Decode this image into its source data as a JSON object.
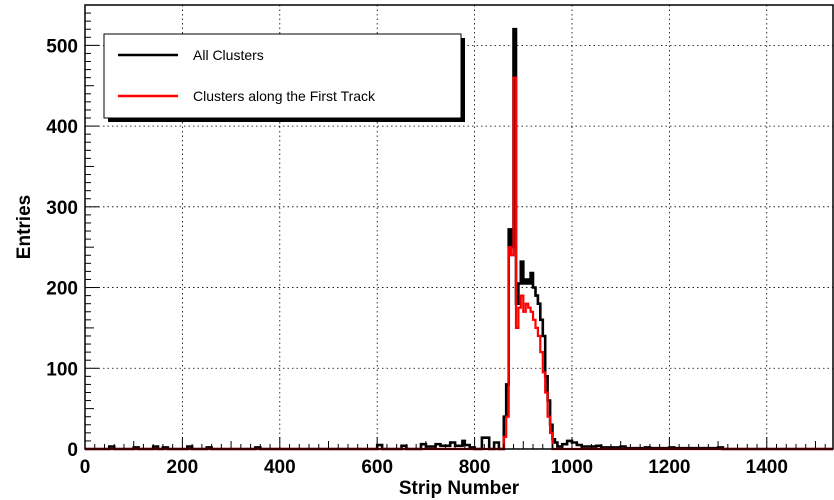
{
  "chart_data": {
    "type": "line",
    "title": "",
    "xlabel": "Strip Number",
    "ylabel": "Entries",
    "xlim": [
      0,
      1536
    ],
    "ylim": [
      0,
      550
    ],
    "grid": true,
    "legend_position": "top-left",
    "x_ticks": [
      "0",
      "200",
      "400",
      "600",
      "800",
      "1000",
      "1200",
      "1400"
    ],
    "y_ticks": [
      "0",
      "100",
      "200",
      "300",
      "400",
      "500"
    ],
    "series": [
      {
        "name": "All Clusters",
        "color": "#000000",
        "x": [
          0,
          50,
          60,
          100,
          110,
          140,
          150,
          160,
          170,
          210,
          220,
          250,
          260,
          350,
          360,
          600,
          610,
          650,
          660,
          690,
          700,
          720,
          730,
          750,
          760,
          775,
          780,
          790,
          800,
          815,
          820,
          830,
          840,
          850,
          860,
          865,
          870,
          875,
          880,
          885,
          890,
          895,
          900,
          905,
          910,
          915,
          920,
          925,
          930,
          935,
          940,
          945,
          950,
          955,
          960,
          965,
          970,
          980,
          990,
          1000,
          1010,
          1020,
          1050,
          1060,
          1100,
          1110,
          1150,
          1160,
          1200,
          1210,
          1300,
          1310,
          1536
        ],
        "values": [
          0,
          3,
          0,
          2,
          0,
          3,
          0,
          2,
          0,
          3,
          0,
          2,
          0,
          2,
          0,
          5,
          0,
          4,
          0,
          6,
          3,
          6,
          4,
          8,
          4,
          10,
          5,
          2,
          0,
          14,
          14,
          0,
          8,
          0,
          40,
          80,
          272,
          250,
          520,
          180,
          205,
          232,
          205,
          210,
          205,
          218,
          200,
          190,
          180,
          160,
          140,
          90,
          60,
          30,
          12,
          8,
          3,
          6,
          10,
          8,
          5,
          3,
          4,
          2,
          3,
          1,
          2,
          1,
          2,
          1,
          2,
          0,
          0
        ]
      },
      {
        "name": "Clusters along the First Track",
        "color": "#ff0000",
        "x": [
          0,
          860,
          865,
          870,
          875,
          880,
          885,
          890,
          895,
          900,
          905,
          910,
          915,
          920,
          925,
          930,
          935,
          940,
          945,
          950,
          955,
          960,
          1536
        ],
        "values": [
          0,
          15,
          40,
          250,
          240,
          460,
          150,
          175,
          190,
          170,
          180,
          175,
          170,
          160,
          150,
          140,
          120,
          95,
          70,
          40,
          20,
          0,
          0
        ]
      }
    ]
  }
}
